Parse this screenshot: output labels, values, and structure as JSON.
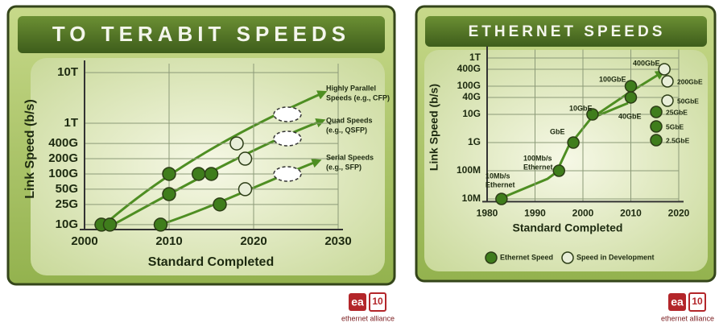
{
  "chart_data": [
    {
      "type": "scatter",
      "title": "TO TERABIT SPEEDS",
      "xlabel": "Standard Completed",
      "ylabel": "Link Speed (b/s)",
      "xlim": [
        2000,
        2030
      ],
      "xticks": [
        2000,
        2010,
        2020,
        2030
      ],
      "yscale": "log",
      "ylim": [
        8000000000,
        15000000000000
      ],
      "yticks": [
        {
          "value": 10000000000,
          "label": "10G"
        },
        {
          "value": 25000000000,
          "label": "25G"
        },
        {
          "value": 50000000000,
          "label": "50G"
        },
        {
          "value": 100000000000,
          "label": "100G"
        },
        {
          "value": 200000000000,
          "label": "200G"
        },
        {
          "value": 400000000000,
          "label": "400G"
        },
        {
          "value": 1000000000000,
          "label": "1T"
        },
        {
          "value": 10000000000000,
          "label": "10T"
        }
      ],
      "grid": true,
      "series": [
        {
          "color": "#3f7d1c",
          "marker": "circle",
          "x": [
            2002,
            2003,
            2009,
            2010,
            2010,
            2013.5,
            2015,
            2016
          ],
          "values": [
            10000000000,
            10000000000,
            10000000000,
            40000000000,
            100000000000,
            100000000000,
            100000000000,
            25000000000
          ]
        },
        {
          "color": "#e8eed8",
          "marker": "circle",
          "x": [
            2018,
            2019,
            2019
          ],
          "values": [
            400000000000,
            200000000000,
            50000000000
          ]
        },
        {
          "color": "#ffffff",
          "marker": "dashed-ellipse",
          "x": [
            2024,
            2024,
            2024
          ],
          "values": [
            1500000000000,
            500000000000,
            100000000000
          ]
        }
      ],
      "annotations": [
        [
          "Highly Parallel",
          "Speeds (e.g., CFP)"
        ],
        [
          "Quad Speeds",
          "(e.g., QSFP)"
        ],
        [
          "Serial Speeds",
          "(e.g., SFP)"
        ]
      ],
      "logo": {
        "mark": "ea",
        "badge": "10",
        "text": "ethernet alliance"
      }
    },
    {
      "type": "scatter",
      "title": "ETHERNET SPEEDS",
      "xlabel": "Standard Completed",
      "ylabel": "Link Speed (b/s)",
      "xlim": [
        1980,
        2020
      ],
      "xticks": [
        1980,
        1990,
        2000,
        2010,
        2020
      ],
      "yscale": "log",
      "ylim": [
        8000000,
        2000000000000
      ],
      "yticks": [
        {
          "value": 10000000,
          "label": "10M"
        },
        {
          "value": 100000000,
          "label": "100M"
        },
        {
          "value": 1000000000,
          "label": "1G"
        },
        {
          "value": 10000000000,
          "label": "10G"
        },
        {
          "value": 40000000000,
          "label": "40G"
        },
        {
          "value": 100000000000,
          "label": "100G"
        },
        {
          "value": 400000000000,
          "label": "400G"
        },
        {
          "value": 1000000000000,
          "label": "1T"
        }
      ],
      "grid": true,
      "legend": "bottom",
      "series": [
        {
          "name": "Ethernet Speed",
          "color": "#3f7d1c",
          "marker": "circle",
          "x": [
            1983,
            1995,
            1998,
            2002,
            2010,
            2010
          ],
          "values": [
            10000000,
            100000000,
            1000000000,
            10000000000,
            40000000000,
            100000000000
          ],
          "labels": [
            [
              "10Mb/s",
              "Ethernet"
            ],
            [
              "100Mb/s",
              "Ethernet"
            ],
            [
              "GbE"
            ],
            [
              "10GbE"
            ],
            [
              "40GbE"
            ],
            [
              "100GbE"
            ]
          ]
        },
        {
          "name": "Speed in Development",
          "color": "#e8eed8",
          "marker": "circle",
          "x": [
            2017
          ],
          "values": [
            400000000000
          ],
          "labels": [
            [
              "400GbE"
            ]
          ]
        }
      ],
      "other_speeds": [
        {
          "label": "200GbE",
          "series": 1
        },
        {
          "label": "50GbE",
          "series": 1
        },
        {
          "label": "25GbE",
          "series": 0
        },
        {
          "label": "5GbE",
          "series": 0
        },
        {
          "label": "2.5GbE",
          "series": 0
        }
      ],
      "logo": {
        "mark": "ea",
        "badge": "10",
        "text": "ethernet alliance"
      }
    }
  ]
}
